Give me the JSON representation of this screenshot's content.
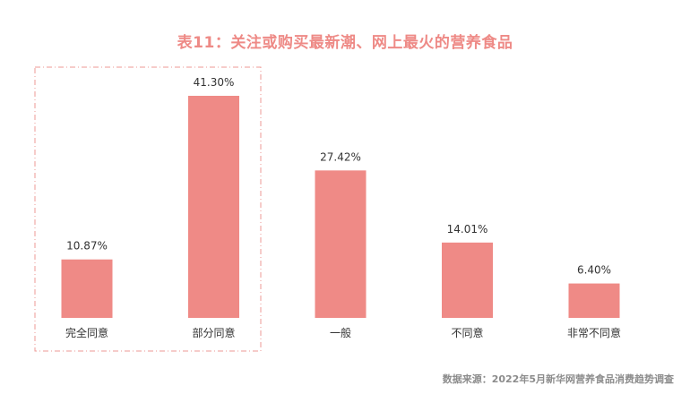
{
  "chart_data": {
    "type": "bar",
    "title": "表11：关注或购买最新潮、网上最火的营养食品",
    "categories": [
      "完全同意",
      "部分同意",
      "一般",
      "不同意",
      "非常不同意"
    ],
    "values": [
      10.87,
      41.3,
      27.42,
      14.01,
      6.4
    ],
    "value_labels": [
      "10.87%",
      "41.30%",
      "27.42%",
      "14.01%",
      "6.40%"
    ],
    "unit": "%",
    "ylim": [
      0,
      45
    ],
    "grid": false,
    "legend": "none",
    "bar_color": "#ef8a86",
    "highlight": {
      "categories": [
        "完全同意",
        "部分同意"
      ],
      "style": "dashed-box",
      "color": "#ee9a96"
    }
  },
  "source": "数据来源：2022年5月新华网营养食品消费趋势调查"
}
